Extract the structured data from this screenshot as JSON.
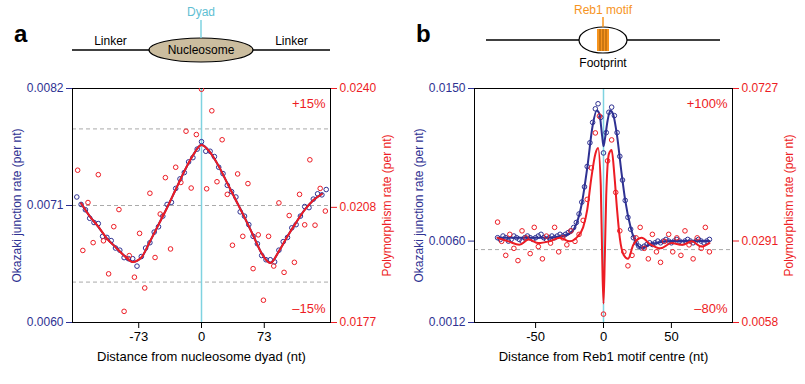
{
  "chart_data": [
    {
      "type": "scatter",
      "title": "a",
      "schematic": {
        "top": "Dyad",
        "left": "Linker",
        "center": "Nucleosome",
        "right": "Linker"
      },
      "xlabel": "Distance from nucleosome dyad (nt)",
      "ylabel": "Okazaki junction rate (per nt)",
      "y2label": "Polymorphism rate (per nt)",
      "xlim": [
        -150,
        150
      ],
      "xticks": [
        -73,
        0,
        73
      ],
      "ylim": [
        0.006,
        0.0082
      ],
      "yticks": [
        {
          "value": 0.006,
          "label": "0.0060"
        },
        0.0071,
        0.0082
      ],
      "y2lim": [
        0.0177,
        0.024
      ],
      "y2ticks": [
        0.0177,
        0.0208,
        {
          "value": 0.024,
          "label": "0.0240"
        }
      ],
      "hlines": [
        0.00782,
        0.0071,
        0.00638
      ],
      "vline": 0,
      "annotations": [
        "+15%",
        "–15%"
      ],
      "series": [
        {
          "type": "scatter",
          "marker": "circle",
          "color": "#2e3192",
          "x": [
            -145,
            -140,
            -135,
            -130,
            -125,
            -120,
            -115,
            -110,
            -105,
            -100,
            -95,
            -90,
            -85,
            -80,
            -75,
            -70,
            -65,
            -60,
            -55,
            -50,
            -45,
            -40,
            -35,
            -30,
            -25,
            -20,
            -15,
            -10,
            -5,
            0,
            5,
            10,
            15,
            20,
            25,
            30,
            35,
            40,
            45,
            50,
            55,
            60,
            65,
            70,
            75,
            80,
            85,
            90,
            95,
            100,
            105,
            110,
            115,
            120,
            125,
            130,
            135,
            140,
            145
          ],
          "values": [
            0.00718,
            0.00711,
            0.00706,
            0.00698,
            0.00694,
            0.00693,
            0.00681,
            0.0068,
            0.00677,
            0.0067,
            0.00668,
            0.00661,
            0.0066,
            0.0066,
            0.00653,
            0.00662,
            0.0067,
            0.00675,
            0.00685,
            0.0069,
            0.007,
            0.00711,
            0.00713,
            0.00726,
            0.00735,
            0.00741,
            0.00751,
            0.00755,
            0.00763,
            0.0077,
            0.00761,
            0.00761,
            0.00756,
            0.00746,
            0.0074,
            0.00729,
            0.00723,
            0.00718,
            0.00704,
            0.007,
            0.00692,
            0.00681,
            0.00674,
            0.00663,
            0.00659,
            0.00659,
            0.00657,
            0.00668,
            0.00676,
            0.0068,
            0.00689,
            0.00692,
            0.007,
            0.00709,
            0.00708,
            0.00716,
            0.00721,
            0.0072,
            0.00725
          ]
        },
        {
          "type": "line",
          "color": "#2e3192",
          "x": [
            -140,
            -130,
            -120,
            -110,
            -100,
            -90,
            -80,
            -70,
            -60,
            -50,
            -40,
            -30,
            -20,
            -10,
            0,
            10,
            20,
            30,
            40,
            50,
            60,
            70,
            80,
            90,
            100,
            110,
            120,
            130,
            140
          ],
          "values": [
            0.00712,
            0.007,
            0.0069,
            0.00679,
            0.00671,
            0.00663,
            0.00657,
            0.00661,
            0.00676,
            0.00692,
            0.00708,
            0.00725,
            0.00742,
            0.00757,
            0.00767,
            0.0076,
            0.00747,
            0.00731,
            0.00715,
            0.00699,
            0.00682,
            0.00665,
            0.00656,
            0.00667,
            0.00681,
            0.00694,
            0.00706,
            0.00715,
            0.00721
          ]
        },
        {
          "type": "scatter",
          "marker": "circle",
          "color": "#ed1c24",
          "axis": "y2",
          "x": [
            -144,
            -138,
            -132,
            -126,
            -120,
            -114,
            -108,
            -102,
            -96,
            -90,
            -84,
            -78,
            -72,
            -66,
            -60,
            -54,
            -48,
            -42,
            -36,
            -30,
            -24,
            -18,
            -12,
            -6,
            0,
            6,
            12,
            18,
            24,
            30,
            36,
            42,
            48,
            54,
            60,
            66,
            72,
            78,
            84,
            90,
            96,
            102,
            108,
            114,
            120,
            126,
            132,
            138,
            144
          ],
          "values": [
            0.0218,
            0.01964,
            0.02093,
            0.01985,
            0.02168,
            0.0199,
            0.01901,
            0.02028,
            0.02074,
            0.018,
            0.0195,
            0.01892,
            0.0201,
            0.01863,
            0.02118,
            0.01945,
            0.02062,
            0.0216,
            0.01968,
            0.02188,
            0.02147,
            0.02285,
            0.02132,
            0.02276,
            0.02398,
            0.0213,
            0.0234,
            0.02149,
            0.02262,
            0.02115,
            0.01978,
            0.0217,
            0.02002,
            0.02144,
            0.01915,
            0.02006,
            0.0183,
            0.02002,
            0.01922,
            0.02092,
            0.01905,
            0.02058,
            0.01932,
            0.02115,
            0.02033,
            0.02208,
            0.02032,
            0.02131,
            0.0207
          ]
        },
        {
          "type": "line",
          "color": "#ed1c24",
          "axis": "y2",
          "x": [
            -140,
            -130,
            -120,
            -110,
            -100,
            -90,
            -80,
            -70,
            -60,
            -50,
            -40,
            -30,
            -20,
            -10,
            0,
            10,
            20,
            30,
            40,
            50,
            60,
            70,
            80,
            90,
            100,
            110,
            120,
            130,
            140
          ],
          "values": [
            0.02091,
            0.02056,
            0.02028,
            0.01996,
            0.01973,
            0.0195,
            0.01933,
            0.01945,
            0.01988,
            0.02033,
            0.02079,
            0.02128,
            0.02177,
            0.0222,
            0.02248,
            0.02228,
            0.02191,
            0.02145,
            0.02099,
            0.02053,
            0.02005,
            0.01956,
            0.0193,
            0.01962,
            0.02002,
            0.02039,
            0.02073,
            0.02099,
            0.02116
          ]
        }
      ]
    },
    {
      "type": "scatter",
      "title": "b",
      "schematic": {
        "top": "Reb1 motif",
        "bottom": "Footprint"
      },
      "xlabel": "Distance from Reb1 motif centre (nt)",
      "ylabel": "Okazaki junction rate (per nt)",
      "y2label": "Polymorphism rate (per nt)",
      "xlim": [
        -95,
        95
      ],
      "xticks": [
        -50,
        0,
        50
      ],
      "ylim": [
        0.0012,
        0.015
      ],
      "yticks": [
        0.0012,
        {
          "value": 0.006,
          "label": "0.0060"
        },
        {
          "value": 0.015,
          "label": "0.0150"
        }
      ],
      "y2lim": [
        0.0058,
        0.0727
      ],
      "y2ticks": [
        0.0058,
        0.0291,
        0.0727
      ],
      "hlines": [
        0.0055
      ],
      "vline": 0,
      "annotations": [
        "+100%",
        "–80%"
      ],
      "series": [
        {
          "type": "scatter",
          "marker": "circle",
          "color": "#2e3192",
          "x": [
            -78,
            -76,
            -74,
            -72,
            -70,
            -68,
            -66,
            -64,
            -62,
            -60,
            -58,
            -56,
            -54,
            -52,
            -50,
            -48,
            -46,
            -44,
            -42,
            -40,
            -38,
            -36,
            -34,
            -32,
            -30,
            -28,
            -26,
            -24,
            -22,
            -20,
            -18,
            -16,
            -14,
            -12,
            -10,
            -8,
            -6,
            -4,
            -2,
            0,
            2,
            4,
            6,
            8,
            10,
            12,
            14,
            16,
            18,
            20,
            22,
            24,
            26,
            28,
            30,
            32,
            34,
            36,
            38,
            40,
            42,
            44,
            46,
            48,
            50,
            52,
            54,
            56,
            58,
            60,
            62,
            64,
            66,
            68,
            70,
            72,
            74,
            76,
            78
          ],
          "values": [
            0.0062,
            0.0061,
            0.0063,
            0.0062,
            0.006,
            0.0061,
            0.0063,
            0.0062,
            0.0061,
            0.006,
            0.0062,
            0.0063,
            0.0062,
            0.0061,
            0.0062,
            0.0063,
            0.0064,
            0.0062,
            0.0061,
            0.0062,
            0.0063,
            0.0062,
            0.0063,
            0.0064,
            0.0063,
            0.0064,
            0.0065,
            0.0066,
            0.0068,
            0.0071,
            0.0076,
            0.0083,
            0.0092,
            0.0104,
            0.0118,
            0.013,
            0.0138,
            0.0141,
            0.0133,
            0.0112,
            0.0124,
            0.0136,
            0.0139,
            0.0134,
            0.0124,
            0.011,
            0.0096,
            0.0084,
            0.0074,
            0.0067,
            0.0062,
            0.0059,
            0.0057,
            0.0056,
            0.0057,
            0.0058,
            0.0059,
            0.0058,
            0.0059,
            0.006,
            0.0059,
            0.006,
            0.0061,
            0.006,
            0.0059,
            0.006,
            0.0061,
            0.006,
            0.0059,
            0.006,
            0.0061,
            0.006,
            0.0059,
            0.006,
            0.0061,
            0.006,
            0.0059,
            0.006,
            0.0061
          ]
        },
        {
          "type": "line",
          "color": "#2e3192",
          "x": [
            -78,
            -70,
            -60,
            -50,
            -40,
            -30,
            -24,
            -20,
            -16,
            -12,
            -8,
            -5,
            -3,
            -1,
            0,
            1,
            3,
            5,
            7,
            10,
            13,
            16,
            20,
            24,
            28,
            34,
            40,
            50,
            60,
            70,
            78
          ],
          "values": [
            0.0062,
            0.0062,
            0.0062,
            0.0062,
            0.0062,
            0.0063,
            0.0065,
            0.007,
            0.0082,
            0.0103,
            0.0128,
            0.0137,
            0.0135,
            0.0122,
            0.0116,
            0.012,
            0.0131,
            0.0137,
            0.0135,
            0.0122,
            0.0102,
            0.0084,
            0.0068,
            0.0059,
            0.0056,
            0.0058,
            0.0059,
            0.006,
            0.006,
            0.006,
            0.006
          ]
        },
        {
          "type": "scatter",
          "marker": "circle",
          "color": "#ed1c24",
          "axis": "y2",
          "x": [
            -78,
            -75,
            -72,
            -69,
            -66,
            -63,
            -60,
            -57,
            -54,
            -51,
            -48,
            -45,
            -42,
            -39,
            -36,
            -33,
            -30,
            -27,
            -24,
            -21,
            -18,
            -15,
            -12,
            -9,
            -6,
            -3,
            0,
            3,
            6,
            9,
            12,
            15,
            18,
            21,
            24,
            27,
            30,
            33,
            36,
            39,
            42,
            45,
            48,
            51,
            54,
            57,
            60,
            63,
            66,
            69,
            72,
            75,
            78
          ],
          "values": [
            0.0345,
            0.029,
            0.025,
            0.031,
            0.027,
            0.0235,
            0.032,
            0.03,
            0.0255,
            0.033,
            0.0275,
            0.024,
            0.0305,
            0.0285,
            0.033,
            0.026,
            0.03,
            0.028,
            0.032,
            0.029,
            0.031,
            0.035,
            0.041,
            0.05,
            0.06,
            0.0648,
            0.0082,
            0.052,
            0.058,
            0.043,
            0.032,
            0.026,
            0.022,
            0.025,
            0.03,
            0.033,
            0.027,
            0.024,
            0.031,
            0.026,
            0.023,
            0.029,
            0.031,
            0.026,
            0.03,
            0.025,
            0.032,
            0.028,
            0.024,
            0.03,
            0.027,
            0.033,
            0.026
          ]
        },
        {
          "type": "line",
          "color": "#ed1c24",
          "axis": "y2",
          "x": [
            -78,
            -70,
            -62,
            -55,
            -48,
            -40,
            -32,
            -25,
            -20,
            -15,
            -12,
            -9,
            -6,
            -4,
            -2,
            -1,
            0,
            1,
            2,
            4,
            6,
            8,
            10,
            12,
            15,
            18,
            22,
            28,
            35,
            42,
            50,
            58,
            65,
            72,
            78
          ],
          "values": [
            0.03,
            0.029,
            0.028,
            0.0295,
            0.0285,
            0.029,
            0.03,
            0.029,
            0.03,
            0.033,
            0.038,
            0.047,
            0.054,
            0.0557,
            0.045,
            0.025,
            0.0112,
            0.025,
            0.042,
            0.054,
            0.0551,
            0.048,
            0.038,
            0.03,
            0.025,
            0.024,
            0.028,
            0.03,
            0.028,
            0.027,
            0.0285,
            0.028,
            0.029,
            0.0275,
            0.0285
          ]
        }
      ]
    }
  ]
}
